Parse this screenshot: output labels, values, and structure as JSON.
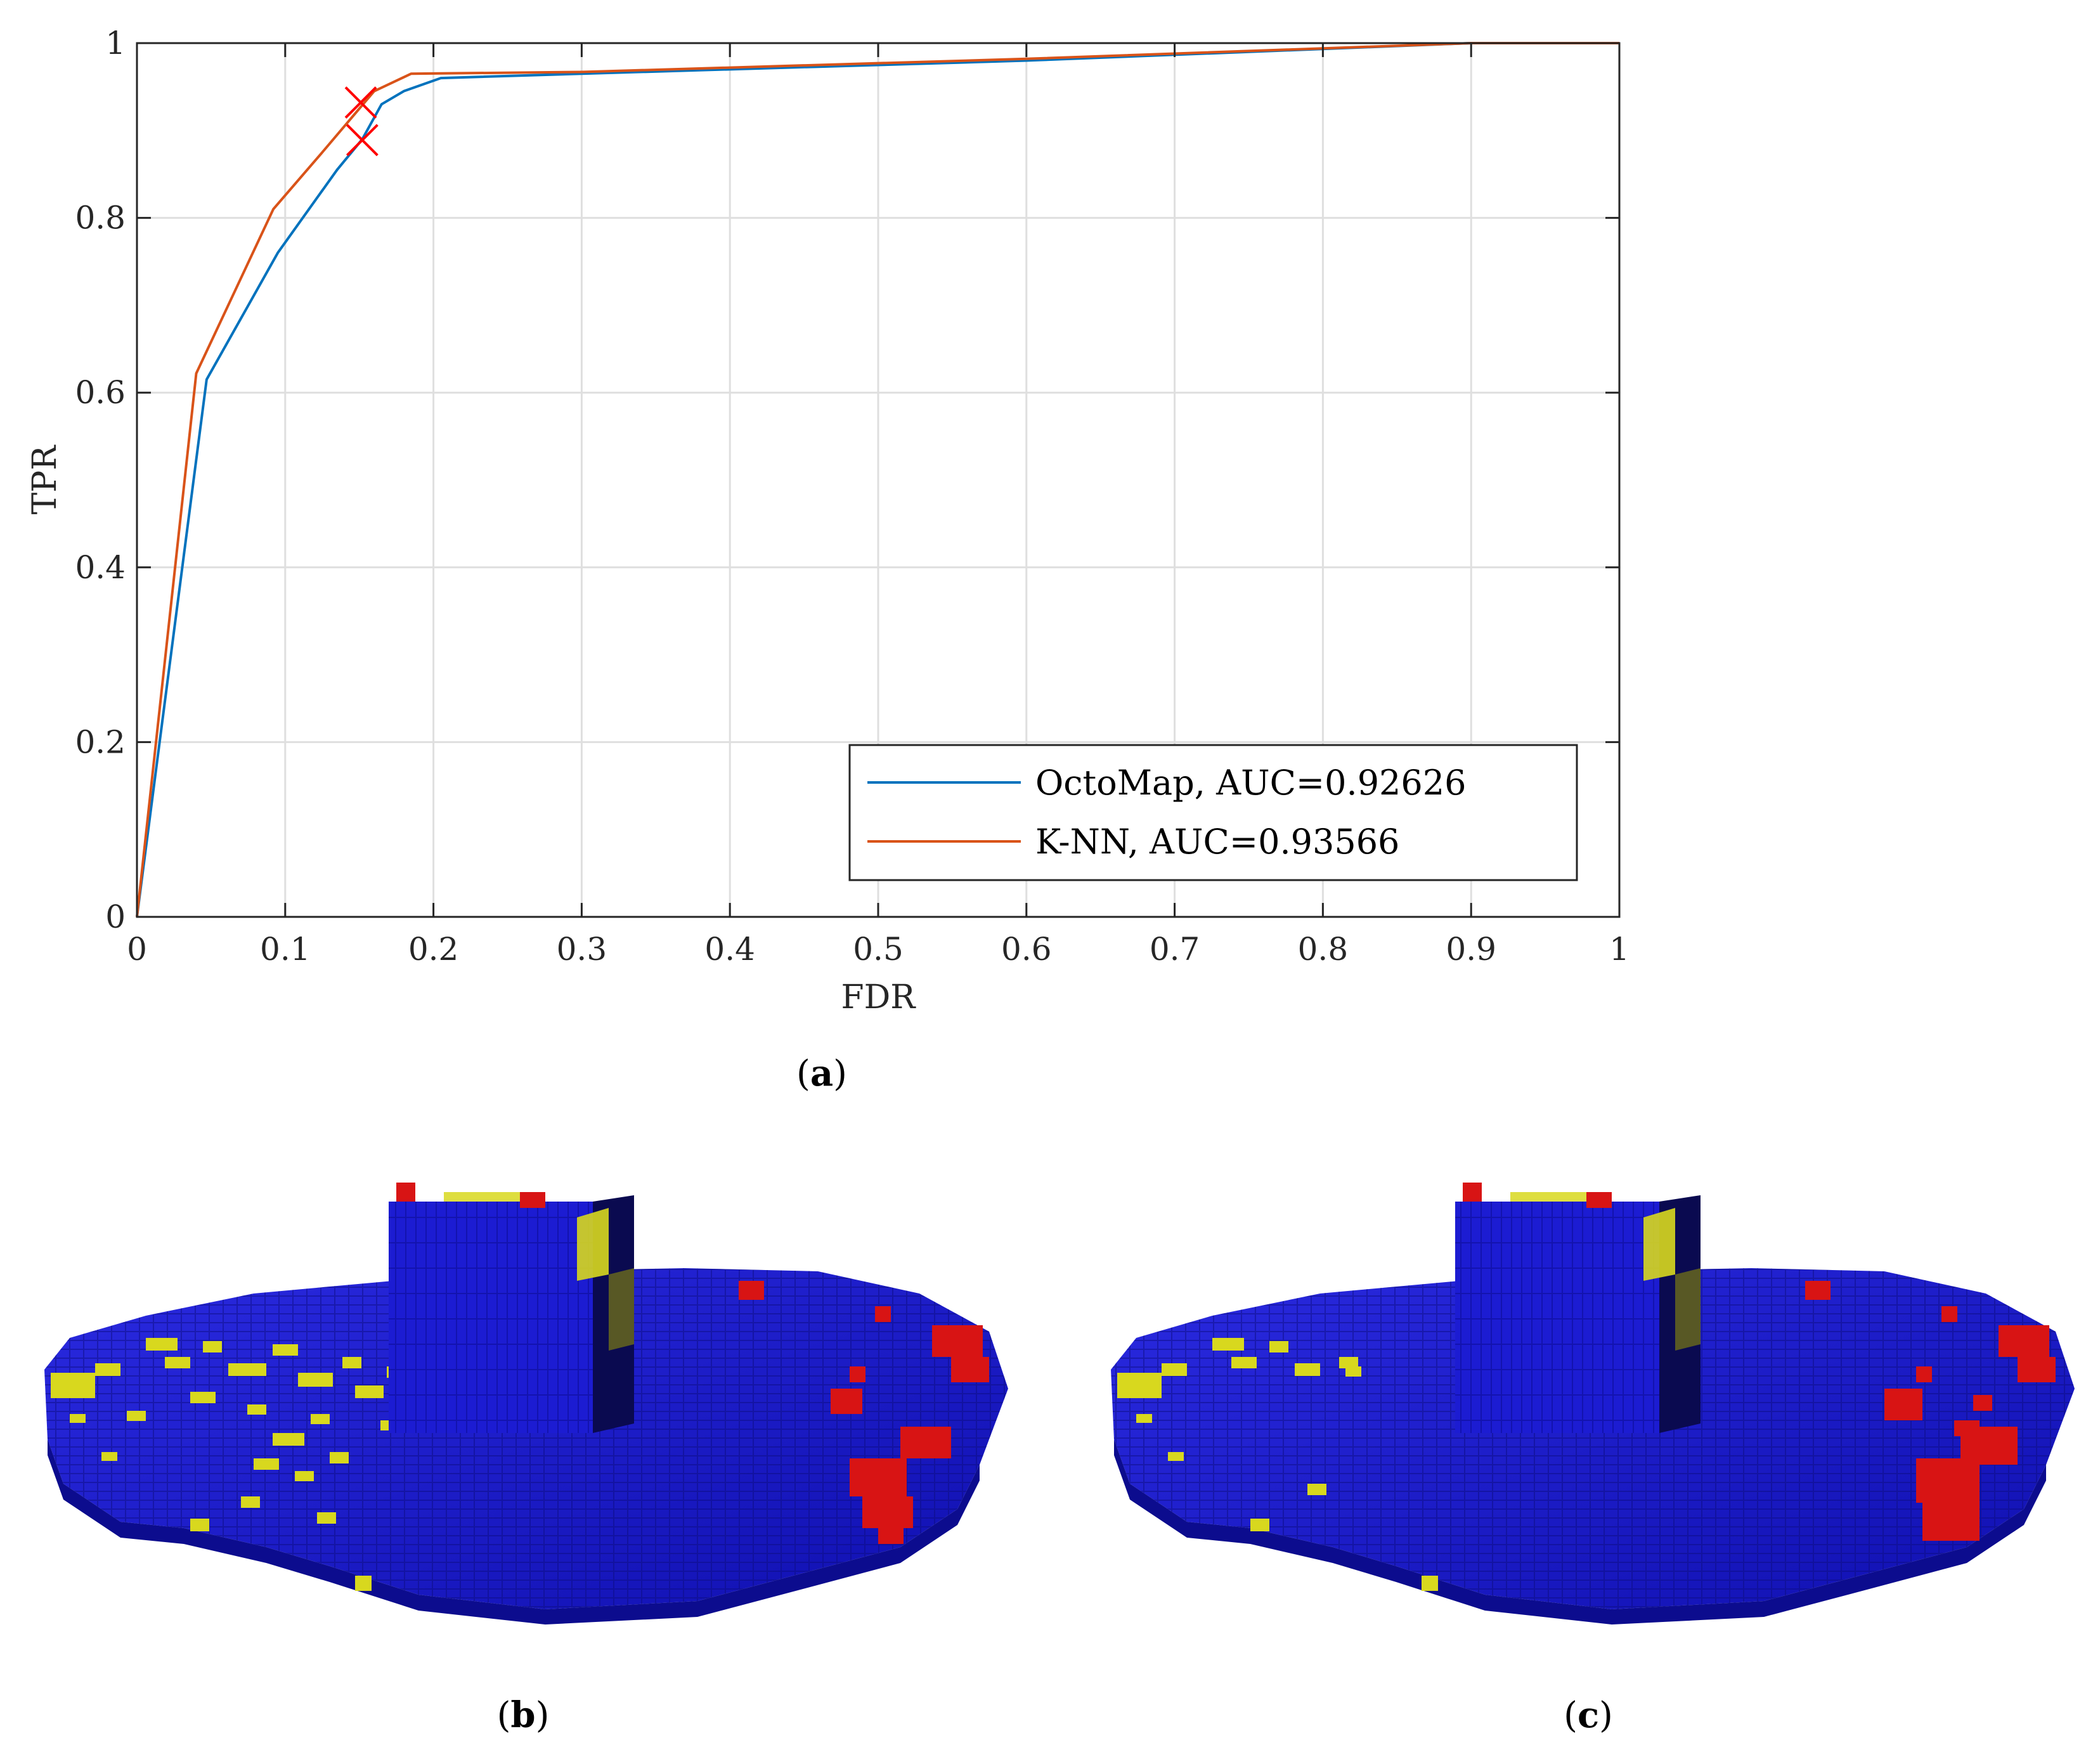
{
  "figure": {
    "captions": {
      "a": "a",
      "b": "b",
      "c": "c"
    }
  },
  "chart_data": {
    "type": "line",
    "xlabel": "FDR",
    "ylabel": "TPR",
    "xlim": [
      0,
      1
    ],
    "ylim": [
      0,
      1
    ],
    "xticks": [
      "0",
      "0.1",
      "0.2",
      "0.3",
      "0.4",
      "0.5",
      "0.6",
      "0.7",
      "0.8",
      "0.9",
      "1"
    ],
    "yticks": [
      "0",
      "0.2",
      "0.4",
      "0.6",
      "0.8",
      "1"
    ],
    "grid": true,
    "legend_position": "bottom-right",
    "series": [
      {
        "name": "OctoMap, AUC=0.92626",
        "color": "#0072BD",
        "points": [
          [
            0,
            0
          ],
          [
            0.047,
            0.615
          ],
          [
            0.095,
            0.76
          ],
          [
            0.135,
            0.855
          ],
          [
            0.152,
            0.89
          ],
          [
            0.165,
            0.93
          ],
          [
            0.18,
            0.945
          ],
          [
            0.205,
            0.96
          ],
          [
            0.3,
            0.965
          ],
          [
            0.6,
            0.98
          ],
          [
            0.9,
            1.0
          ],
          [
            1.0,
            1.0
          ]
        ]
      },
      {
        "name": "K-NN, AUC=0.93566",
        "color": "#D95319",
        "points": [
          [
            0,
            0
          ],
          [
            0.04,
            0.622
          ],
          [
            0.092,
            0.81
          ],
          [
            0.125,
            0.875
          ],
          [
            0.15,
            0.925
          ],
          [
            0.16,
            0.945
          ],
          [
            0.185,
            0.965
          ],
          [
            0.3,
            0.967
          ],
          [
            0.6,
            0.982
          ],
          [
            0.9,
            1.0
          ],
          [
            1.0,
            1.0
          ]
        ]
      }
    ],
    "markers": [
      {
        "x": 0.151,
        "y": 0.932,
        "color": "#FF0000",
        "symbol": "x"
      },
      {
        "x": 0.152,
        "y": 0.889,
        "color": "#FF0000",
        "symbol": "x"
      }
    ]
  },
  "renders": {
    "colors": {
      "ground": "#1414C8",
      "yellow": "#D8D81E",
      "red": "#D81414",
      "dark": "#0A0A50"
    }
  }
}
